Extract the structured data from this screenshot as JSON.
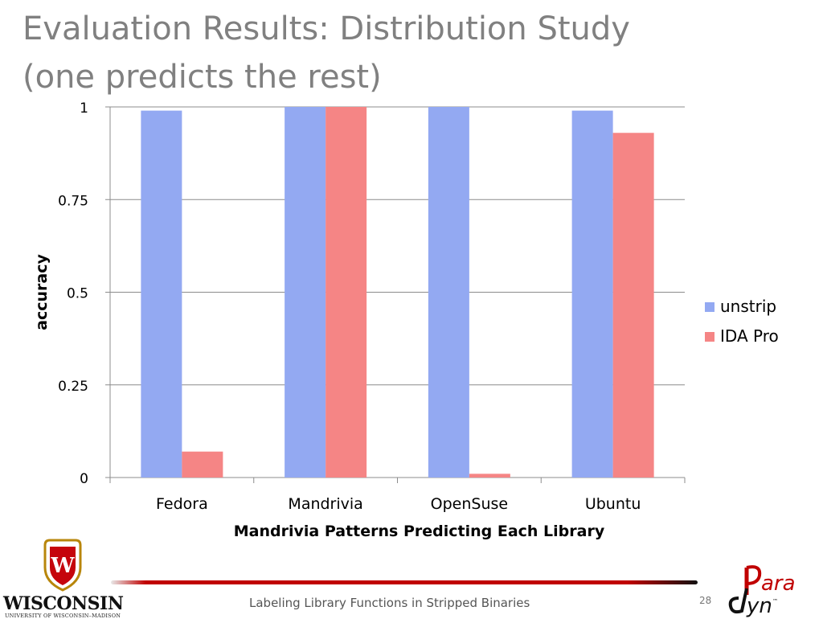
{
  "slide": {
    "title_line1": "Evaluation Results: Distribution Study",
    "title_line2": "(one predicts the rest)",
    "footer_text": "Labeling Library Functions in Stripped Binaries",
    "page_number": "28",
    "logo_left_name": "WISCONSIN",
    "logo_left_sub": "UNIVERSITY OF WISCONSIN–MADISON",
    "logo_right_top": "ara",
    "logo_right_bottom": "yn",
    "logo_right_tm": "™",
    "brand_red": "#c00000"
  },
  "chart_data": {
    "type": "bar",
    "title": "",
    "xlabel": "Mandrivia Patterns Predicting Each Library",
    "ylabel": "accuracy",
    "ylim": [
      0,
      1
    ],
    "yticks": [
      "0",
      "0.25",
      "0.5",
      "0.75",
      "1"
    ],
    "grid": true,
    "legend_position": "right",
    "categories": [
      "Fedora",
      "Mandrivia",
      "OpenSuse",
      "Ubuntu"
    ],
    "series": [
      {
        "name": "unstrip",
        "color": "#93a9f2",
        "values": [
          0.99,
          1.0,
          1.0,
          0.99
        ]
      },
      {
        "name": "IDA Pro",
        "color": "#f58585",
        "values": [
          0.07,
          1.0,
          0.01,
          0.93
        ]
      }
    ]
  }
}
